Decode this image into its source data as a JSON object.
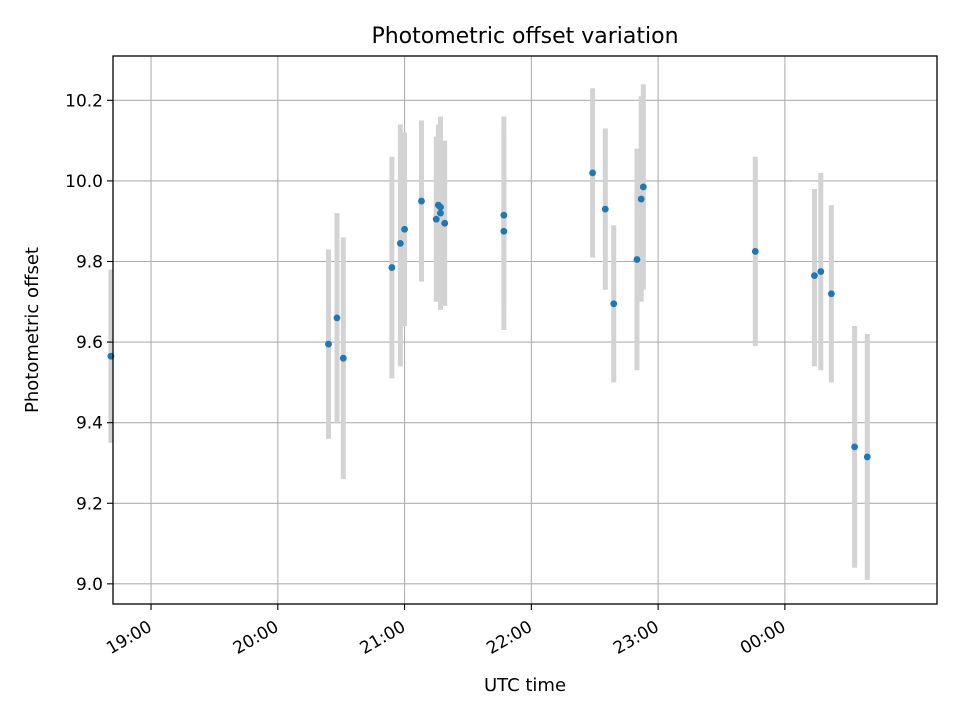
{
  "chart_data": {
    "type": "scatter",
    "title": "Photometric offset variation",
    "xlabel": "UTC time",
    "ylabel": "Photometric offset",
    "ylim": [
      8.95,
      10.31
    ],
    "xlim": [
      "18:42",
      "01:12"
    ],
    "grid": true,
    "x_ticks": [
      "19:00",
      "20:00",
      "21:00",
      "22:00",
      "23:00",
      "00:00"
    ],
    "y_ticks": [
      "9.0",
      "9.2",
      "9.4",
      "9.6",
      "9.8",
      "10.0",
      "10.2"
    ],
    "marker_color": "#1f77b4",
    "errorbar_color": "#d3d3d3",
    "points": [
      {
        "t": "18:41",
        "y": 9.565,
        "lo": 9.35,
        "hi": 9.78
      },
      {
        "t": "20:24",
        "y": 9.595,
        "lo": 9.36,
        "hi": 9.83
      },
      {
        "t": "20:28",
        "y": 9.66,
        "lo": 9.4,
        "hi": 9.92
      },
      {
        "t": "20:31",
        "y": 9.56,
        "lo": 9.26,
        "hi": 9.86
      },
      {
        "t": "20:54",
        "y": 9.785,
        "lo": 9.51,
        "hi": 10.06
      },
      {
        "t": "20:58",
        "y": 9.845,
        "lo": 9.54,
        "hi": 10.14
      },
      {
        "t": "21:00",
        "y": 9.88,
        "lo": 9.64,
        "hi": 10.12
      },
      {
        "t": "21:08",
        "y": 9.95,
        "lo": 9.75,
        "hi": 10.15
      },
      {
        "t": "21:15",
        "y": 9.905,
        "lo": 9.7,
        "hi": 10.11
      },
      {
        "t": "21:16",
        "y": 9.94,
        "lo": 9.73,
        "hi": 10.14
      },
      {
        "t": "21:17",
        "y": 9.935,
        "lo": 9.71,
        "hi": 10.16
      },
      {
        "t": "21:17",
        "y": 9.92,
        "lo": 9.68,
        "hi": 10.1
      },
      {
        "t": "21:19",
        "y": 9.895,
        "lo": 9.69,
        "hi": 10.1
      },
      {
        "t": "21:47",
        "y": 9.915,
        "lo": 9.69,
        "hi": 10.16
      },
      {
        "t": "21:47",
        "y": 9.875,
        "lo": 9.63,
        "hi": 10.12
      },
      {
        "t": "22:29",
        "y": 10.02,
        "lo": 9.81,
        "hi": 10.23
      },
      {
        "t": "22:35",
        "y": 9.93,
        "lo": 9.73,
        "hi": 10.13
      },
      {
        "t": "22:39",
        "y": 9.695,
        "lo": 9.5,
        "hi": 9.89
      },
      {
        "t": "22:50",
        "y": 9.805,
        "lo": 9.53,
        "hi": 10.08
      },
      {
        "t": "22:52",
        "y": 9.955,
        "lo": 9.7,
        "hi": 10.21
      },
      {
        "t": "22:53",
        "y": 9.985,
        "lo": 9.73,
        "hi": 10.24
      },
      {
        "t": "23:46",
        "y": 9.825,
        "lo": 9.59,
        "hi": 10.06
      },
      {
        "t": "00:14",
        "y": 9.765,
        "lo": 9.54,
        "hi": 9.98
      },
      {
        "t": "00:17",
        "y": 9.775,
        "lo": 9.53,
        "hi": 10.02
      },
      {
        "t": "00:22",
        "y": 9.72,
        "lo": 9.5,
        "hi": 9.94
      },
      {
        "t": "00:33",
        "y": 9.34,
        "lo": 9.04,
        "hi": 9.64
      },
      {
        "t": "00:39",
        "y": 9.315,
        "lo": 9.01,
        "hi": 9.62
      }
    ]
  }
}
